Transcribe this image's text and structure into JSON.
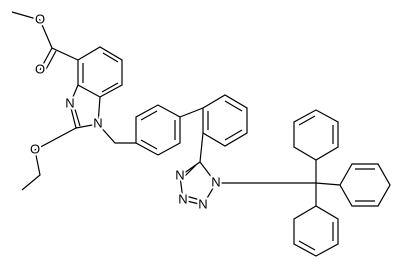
{
  "atoms": [
    {
      "label": "O"
    },
    {
      "label": "O"
    },
    {
      "label": "N"
    },
    {
      "label": "N"
    },
    {
      "label": "O"
    },
    {
      "label": "N"
    },
    {
      "label": "N"
    },
    {
      "label": "N"
    },
    {
      "label": "N"
    }
  ]
}
